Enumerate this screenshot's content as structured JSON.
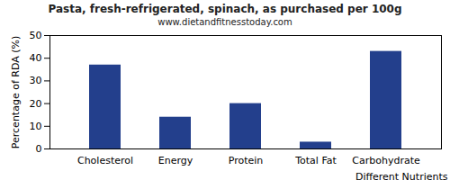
{
  "chart_data": {
    "type": "bar",
    "title": "Pasta, fresh-refrigerated, spinach, as purchased per 100g",
    "subtitle": "www.dietandfitnesstoday.com",
    "x_label": "Different Nutrients",
    "y_label": "Percentage of RDA (%)",
    "categories": [
      "Cholesterol",
      "Energy",
      "Protein",
      "Total Fat",
      "Carbohydrate"
    ],
    "values": [
      37,
      14,
      20,
      3,
      43
    ],
    "color": "#233f8c",
    "ylim": [
      0,
      50
    ],
    "yticks": [
      0,
      10,
      20,
      30,
      40,
      50
    ],
    "grid": false
  }
}
